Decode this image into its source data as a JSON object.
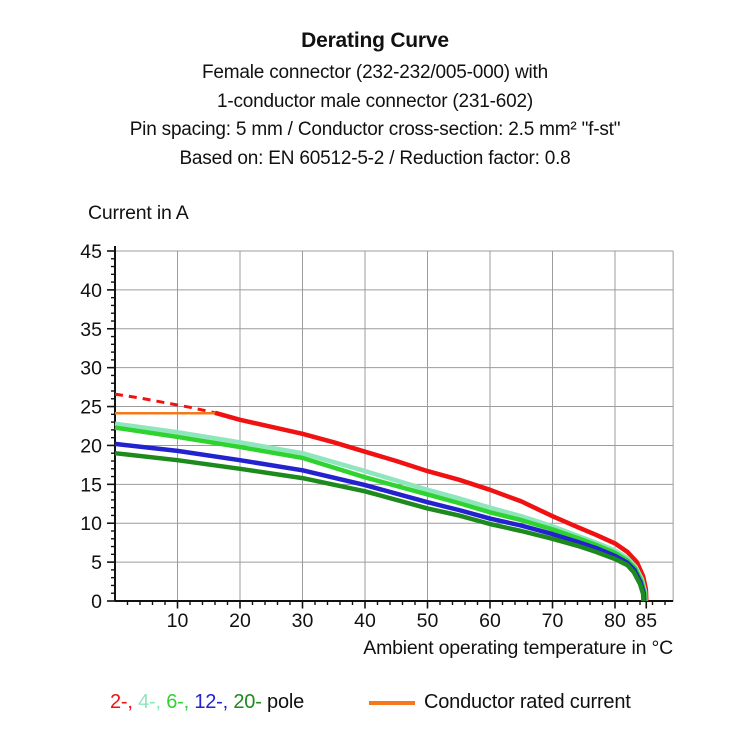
{
  "header": {
    "title": "Derating Curve",
    "subtitle_lines": [
      "Female connector (232-232/005-000) with",
      "1-conductor male connector (231-602)",
      "Pin spacing: 5 mm / Conductor cross-section: 2.5 mm² \"f-st\"",
      "Based on: EN 60512-5-2 / Reduction factor: 0.8"
    ]
  },
  "chart_data": {
    "type": "line",
    "title": "Derating Curve",
    "xlabel": "Ambient operating temperature in °C",
    "ylabel": "Current in A",
    "xlim": [
      0,
      89.3
    ],
    "ylim": [
      0,
      45
    ],
    "x_major_ticks": [
      10,
      20,
      30,
      40,
      50,
      60,
      70,
      80,
      85
    ],
    "y_major_ticks": [
      0,
      5,
      10,
      15,
      20,
      25,
      30,
      35,
      40,
      45
    ],
    "x_minor_step": 2,
    "y_minor_step": 1,
    "grid": true,
    "grid_color": "#9c9c9c",
    "axis_color": "#111111",
    "legend_position": "bottom",
    "series": [
      {
        "name": "2-pole extrapolation (dashed)",
        "color": "#f01212",
        "width": 3,
        "dash": "8 6",
        "points": [
          [
            0,
            26.6
          ],
          [
            4,
            26.1
          ],
          [
            8,
            25.5
          ],
          [
            12,
            24.9
          ],
          [
            16,
            24.2
          ]
        ]
      },
      {
        "name": "Conductor rated current",
        "color": "#f5791a",
        "width": 2.5,
        "points": [
          [
            0,
            24.15
          ],
          [
            16.3,
            24.15
          ]
        ]
      },
      {
        "name": "2-pole",
        "color": "#f01212",
        "width": 4.5,
        "points": [
          [
            16,
            24.2
          ],
          [
            20,
            23.3
          ],
          [
            25,
            22.4
          ],
          [
            30,
            21.5
          ],
          [
            35,
            20.4
          ],
          [
            40,
            19.2
          ],
          [
            45,
            18.0
          ],
          [
            50,
            16.7
          ],
          [
            55,
            15.6
          ],
          [
            60,
            14.3
          ],
          [
            65,
            12.8
          ],
          [
            70,
            10.9
          ],
          [
            74,
            9.5
          ],
          [
            77,
            8.5
          ],
          [
            80,
            7.4
          ],
          [
            82,
            6.3
          ],
          [
            83.5,
            5.0
          ],
          [
            84.5,
            3.2
          ],
          [
            84.95,
            1.5
          ],
          [
            85.0,
            0
          ]
        ]
      },
      {
        "name": "4-pole",
        "color": "#8ee6bd",
        "width": 4.5,
        "points": [
          [
            0,
            22.8
          ],
          [
            10,
            21.7
          ],
          [
            20,
            20.4
          ],
          [
            30,
            19.0
          ],
          [
            40,
            16.7
          ],
          [
            50,
            14.3
          ],
          [
            55,
            13.2
          ],
          [
            60,
            12.0
          ],
          [
            65,
            10.9
          ],
          [
            70,
            9.6
          ],
          [
            74,
            8.4
          ],
          [
            77,
            7.5
          ],
          [
            80,
            6.5
          ],
          [
            82,
            5.5
          ],
          [
            83.3,
            4.4
          ],
          [
            84.3,
            2.8
          ],
          [
            84.8,
            1.2
          ],
          [
            84.85,
            0
          ]
        ]
      },
      {
        "name": "6-pole",
        "color": "#2fd32f",
        "width": 4.5,
        "points": [
          [
            0,
            22.3
          ],
          [
            10,
            21.1
          ],
          [
            20,
            19.8
          ],
          [
            30,
            18.4
          ],
          [
            40,
            15.9
          ],
          [
            50,
            13.7
          ],
          [
            55,
            12.6
          ],
          [
            60,
            11.4
          ],
          [
            65,
            10.4
          ],
          [
            70,
            9.2
          ],
          [
            74,
            8.1
          ],
          [
            77,
            7.2
          ],
          [
            80,
            6.2
          ],
          [
            82,
            5.2
          ],
          [
            83.2,
            4.2
          ],
          [
            84.2,
            2.6
          ],
          [
            84.7,
            1.1
          ],
          [
            84.75,
            0
          ]
        ]
      },
      {
        "name": "12-pole",
        "color": "#2222cf",
        "width": 4.5,
        "points": [
          [
            0,
            20.2
          ],
          [
            10,
            19.3
          ],
          [
            20,
            18.1
          ],
          [
            30,
            16.8
          ],
          [
            40,
            14.9
          ],
          [
            50,
            12.7
          ],
          [
            55,
            11.7
          ],
          [
            60,
            10.6
          ],
          [
            65,
            9.7
          ],
          [
            70,
            8.6
          ],
          [
            74,
            7.6
          ],
          [
            77,
            6.8
          ],
          [
            80,
            5.8
          ],
          [
            82,
            4.9
          ],
          [
            83.1,
            4.0
          ],
          [
            84.1,
            2.4
          ],
          [
            84.6,
            1.0
          ],
          [
            84.65,
            0
          ]
        ]
      },
      {
        "name": "20-pole",
        "color": "#1d8a1d",
        "width": 4.5,
        "points": [
          [
            0,
            19.0
          ],
          [
            10,
            18.1
          ],
          [
            20,
            17.0
          ],
          [
            30,
            15.8
          ],
          [
            40,
            14.1
          ],
          [
            50,
            11.9
          ],
          [
            55,
            11.0
          ],
          [
            60,
            9.9
          ],
          [
            65,
            9.0
          ],
          [
            70,
            8.0
          ],
          [
            74,
            7.1
          ],
          [
            77,
            6.3
          ],
          [
            80,
            5.4
          ],
          [
            82,
            4.6
          ],
          [
            83,
            3.7
          ],
          [
            84,
            2.2
          ],
          [
            84.5,
            0.9
          ],
          [
            84.55,
            0
          ]
        ]
      }
    ]
  },
  "legend": {
    "pole_entries": [
      {
        "label": "2-,",
        "color": "#f01212"
      },
      {
        "label": "4-,",
        "color": "#8ee6bd"
      },
      {
        "label": "6-,",
        "color": "#2fd32f"
      },
      {
        "label": "12-,",
        "color": "#2222cf"
      },
      {
        "label": "20-",
        "color": "#1d8a1d"
      }
    ],
    "pole_suffix": " pole",
    "rated_label": "Conductor rated current",
    "rated_color": "#f5791a"
  }
}
